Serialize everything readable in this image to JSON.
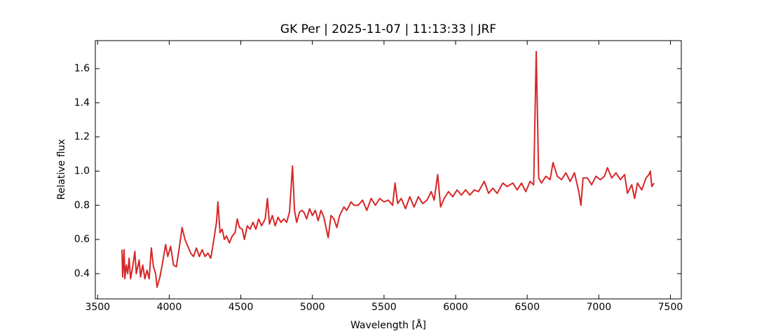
{
  "chart_data": {
    "type": "line",
    "title": "GK Per | 2025-11-07 | 11:13:33 | JRF",
    "x_label": "Wavelength [Å]",
    "y_label": "Relative flux",
    "xlim": [
      3484,
      7576
    ],
    "ylim": [
      0.252,
      1.764
    ],
    "xticks": [
      3500,
      4000,
      4500,
      5000,
      5500,
      6000,
      6500,
      7000,
      7500
    ],
    "yticks": [
      {
        "value": 0.4,
        "label": "0.4"
      },
      {
        "value": 0.6,
        "label": "0.6"
      },
      {
        "value": 0.8,
        "label": "0.8"
      },
      {
        "value": 1.0,
        "label": "1.0"
      },
      {
        "value": 1.2,
        "label": "1.2"
      },
      {
        "value": 1.4,
        "label": "1.4"
      },
      {
        "value": 1.6,
        "label": "1.6"
      }
    ],
    "grid": false,
    "x": [
      3670,
      3675,
      3685,
      3690,
      3700,
      3710,
      3720,
      3730,
      3745,
      3760,
      3770,
      3790,
      3800,
      3815,
      3830,
      3845,
      3860,
      3875,
      3890,
      3905,
      3915,
      3935,
      3955,
      3975,
      3990,
      4010,
      4030,
      4050,
      4070,
      4090,
      4110,
      4130,
      4150,
      4170,
      4190,
      4210,
      4230,
      4250,
      4270,
      4290,
      4310,
      4330,
      4340,
      4355,
      4370,
      4385,
      4400,
      4420,
      4440,
      4460,
      4475,
      4490,
      4510,
      4525,
      4545,
      4565,
      4585,
      4605,
      4625,
      4645,
      4670,
      4686,
      4700,
      4720,
      4740,
      4760,
      4780,
      4800,
      4820,
      4840,
      4861,
      4875,
      4890,
      4910,
      4925,
      4940,
      4960,
      4980,
      5000,
      5020,
      5040,
      5060,
      5080,
      5110,
      5130,
      5150,
      5170,
      5190,
      5220,
      5240,
      5270,
      5290,
      5320,
      5350,
      5380,
      5410,
      5440,
      5470,
      5500,
      5530,
      5560,
      5577,
      5595,
      5620,
      5650,
      5680,
      5710,
      5740,
      5770,
      5800,
      5830,
      5850,
      5875,
      5895,
      5920,
      5950,
      5980,
      6010,
      6040,
      6070,
      6100,
      6130,
      6160,
      6200,
      6230,
      6260,
      6290,
      6330,
      6360,
      6400,
      6430,
      6460,
      6490,
      6520,
      6545,
      6563,
      6580,
      6600,
      6630,
      6660,
      6680,
      6710,
      6740,
      6770,
      6800,
      6830,
      6860,
      6875,
      6890,
      6920,
      6950,
      6980,
      7010,
      7040,
      7060,
      7090,
      7120,
      7150,
      7180,
      7200,
      7230,
      7250,
      7270,
      7300,
      7330,
      7350,
      7360,
      7370,
      7385
    ],
    "series": [
      {
        "name": "GK Per",
        "color": "#d62728",
        "values": [
          0.54,
          0.38,
          0.54,
          0.37,
          0.45,
          0.4,
          0.49,
          0.37,
          0.44,
          0.53,
          0.4,
          0.48,
          0.38,
          0.45,
          0.37,
          0.42,
          0.37,
          0.55,
          0.44,
          0.4,
          0.32,
          0.38,
          0.47,
          0.57,
          0.5,
          0.56,
          0.45,
          0.44,
          0.55,
          0.67,
          0.6,
          0.56,
          0.52,
          0.5,
          0.55,
          0.5,
          0.54,
          0.5,
          0.52,
          0.49,
          0.59,
          0.7,
          0.82,
          0.64,
          0.66,
          0.6,
          0.62,
          0.58,
          0.62,
          0.64,
          0.72,
          0.67,
          0.66,
          0.6,
          0.68,
          0.66,
          0.7,
          0.66,
          0.72,
          0.68,
          0.72,
          0.84,
          0.69,
          0.74,
          0.68,
          0.73,
          0.7,
          0.72,
          0.7,
          0.76,
          1.03,
          0.77,
          0.7,
          0.76,
          0.77,
          0.76,
          0.72,
          0.78,
          0.74,
          0.77,
          0.71,
          0.77,
          0.73,
          0.61,
          0.74,
          0.72,
          0.67,
          0.74,
          0.79,
          0.77,
          0.82,
          0.8,
          0.8,
          0.83,
          0.77,
          0.84,
          0.8,
          0.84,
          0.82,
          0.83,
          0.8,
          0.93,
          0.81,
          0.84,
          0.78,
          0.85,
          0.79,
          0.85,
          0.81,
          0.83,
          0.88,
          0.83,
          0.98,
          0.79,
          0.84,
          0.88,
          0.85,
          0.89,
          0.86,
          0.89,
          0.86,
          0.89,
          0.88,
          0.94,
          0.87,
          0.9,
          0.87,
          0.93,
          0.91,
          0.93,
          0.89,
          0.93,
          0.88,
          0.94,
          0.92,
          1.7,
          0.96,
          0.93,
          0.97,
          0.95,
          1.05,
          0.97,
          0.95,
          0.99,
          0.94,
          0.99,
          0.88,
          0.8,
          0.96,
          0.96,
          0.92,
          0.97,
          0.95,
          0.97,
          1.02,
          0.96,
          0.99,
          0.95,
          0.98,
          0.87,
          0.92,
          0.84,
          0.93,
          0.89,
          0.96,
          0.98,
          1.0,
          0.91,
          0.93
        ]
      }
    ]
  }
}
